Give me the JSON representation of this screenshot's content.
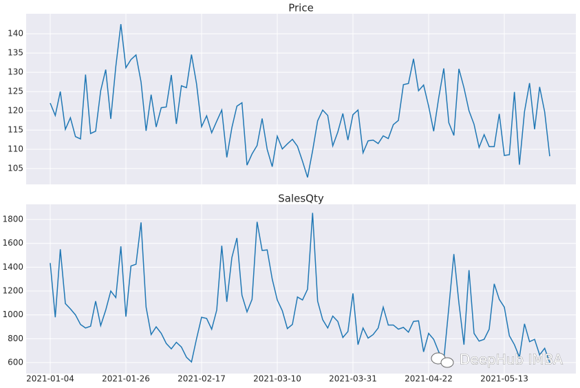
{
  "chart_data": [
    {
      "type": "line",
      "title": "Price",
      "series": [
        {
          "name": "Price",
          "color": "#1f77b4",
          "values": [
            122,
            118.8,
            125,
            115.2,
            118.2,
            113.3,
            112.7,
            129.4,
            114.1,
            114.7,
            125.2,
            130.7,
            117.9,
            131.5,
            142.5,
            131.2,
            133.3,
            134.5,
            127.5,
            114.8,
            124.2,
            115.8,
            120.8,
            121,
            129.3,
            116.6,
            126.5,
            126,
            134.6,
            127,
            115.9,
            118.7,
            114.3,
            117.3,
            120.2,
            107.9,
            115.6,
            121.2,
            122.1,
            105.9,
            108.8,
            111,
            118,
            110,
            105.5,
            113.4,
            110.1,
            111.4,
            112.6,
            110.8,
            106.9,
            102.7,
            109.6,
            117.4,
            120.2,
            118.8,
            110.9,
            114.5,
            119.3,
            112.4,
            119,
            120.2,
            109.1,
            112.2,
            112.4,
            111.5,
            113.5,
            112.8,
            116.4,
            117.5,
            126.8,
            127.1,
            133.5,
            125.2,
            126.7,
            121.2,
            114.7,
            123.4,
            131,
            116.9,
            113.6,
            130.9,
            126,
            120,
            116.5,
            110.5,
            113.8,
            110.7,
            110.7,
            119.2,
            108.4,
            108.6,
            124.9,
            106,
            119.8,
            127.2,
            115.2,
            126.2,
            119.7,
            108.2
          ]
        }
      ],
      "ylim": [
        100.9,
        145.2
      ],
      "yticks": [
        105,
        110,
        115,
        120,
        125,
        130,
        135,
        140
      ],
      "grid": true
    },
    {
      "type": "line",
      "title": "SalesQty",
      "categories": [
        "2021-01-04",
        null,
        null,
        null,
        null,
        null,
        null,
        null,
        null,
        null,
        null,
        null,
        null,
        null,
        null,
        "2021-01-26",
        null,
        null,
        null,
        null,
        null,
        null,
        null,
        null,
        null,
        null,
        null,
        null,
        null,
        null,
        "2021-02-17",
        null,
        null,
        null,
        null,
        null,
        null,
        null,
        null,
        null,
        null,
        null,
        null,
        null,
        null,
        "2021-03-10",
        null,
        null,
        null,
        null,
        null,
        null,
        null,
        null,
        null,
        null,
        null,
        null,
        null,
        null,
        "2021-03-31",
        null,
        null,
        null,
        null,
        null,
        null,
        null,
        null,
        null,
        null,
        null,
        null,
        null,
        null,
        "2021-04-22",
        null,
        null,
        null,
        null,
        null,
        null,
        null,
        null,
        null,
        null,
        null,
        null,
        null,
        null,
        "2021-05-13",
        null,
        null,
        null,
        null,
        null,
        null,
        null,
        null,
        null
      ],
      "series": [
        {
          "name": "SalesQty",
          "color": "#1f77b4",
          "values": [
            1435,
            980,
            1550,
            1095,
            1050,
            1000,
            920,
            890,
            905,
            1115,
            910,
            1040,
            1200,
            1145,
            1575,
            985,
            1410,
            1425,
            1775,
            1065,
            835,
            900,
            845,
            760,
            715,
            770,
            730,
            645,
            605,
            800,
            980,
            970,
            880,
            1040,
            1580,
            1110,
            1480,
            1645,
            1165,
            1025,
            1130,
            1780,
            1540,
            1545,
            1300,
            1125,
            1035,
            885,
            920,
            1150,
            1125,
            1215,
            1855,
            1115,
            960,
            890,
            990,
            945,
            810,
            860,
            1180,
            750,
            890,
            805,
            835,
            890,
            1065,
            915,
            915,
            880,
            895,
            855,
            945,
            950,
            690,
            845,
            795,
            690,
            620,
            1060,
            1510,
            1100,
            750,
            1375,
            845,
            780,
            795,
            880,
            1260,
            1130,
            1065,
            825,
            750,
            645,
            925,
            775,
            795,
            665,
            720,
            600
          ]
        }
      ],
      "ylim": [
        508,
        1927
      ],
      "yticks": [
        600,
        800,
        1000,
        1200,
        1400,
        1600,
        1800
      ],
      "grid": true,
      "annotation": "DeepHub IMBA"
    }
  ]
}
